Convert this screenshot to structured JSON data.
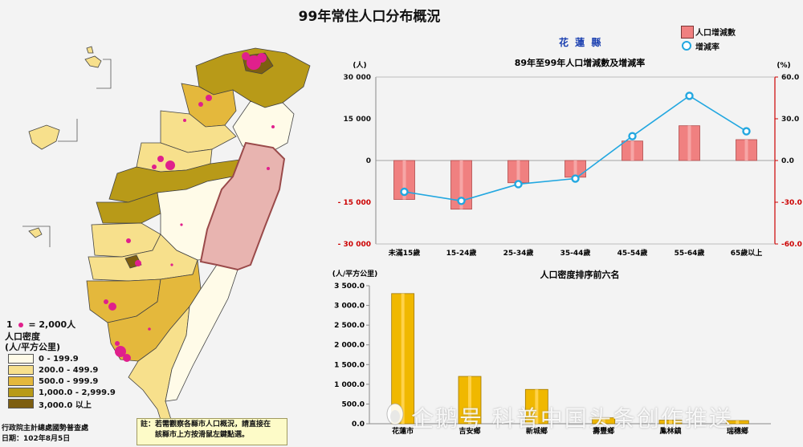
{
  "page": {
    "title": "99年常住人口分布概況"
  },
  "region": {
    "name": "花 蓮 縣"
  },
  "legend_top": {
    "bar_label": "人口增減數",
    "line_label": "增減率",
    "bar_color": "#f08080",
    "line_color": "#22a7e0"
  },
  "map": {
    "dot_legend": {
      "count": "1",
      "equals": "= 2,000人"
    },
    "density_title_1": "人口密度",
    "density_title_2": "(人/平方公里)",
    "classes": [
      {
        "label": "0 - 199.9",
        "color": "#fffbe8"
      },
      {
        "label": "200.0 - 499.9",
        "color": "#f7e08c"
      },
      {
        "label": "500.0 - 999.9",
        "color": "#e4b83c"
      },
      {
        "label": "1,000.0 - 2,999.9",
        "color": "#b89a18"
      },
      {
        "label": "3,000.0 以上",
        "color": "#7d5e10"
      }
    ],
    "highlight_color": "#e8b4b0",
    "dot_color": "#e0208c"
  },
  "note": {
    "line1": "註：若需觀察各縣市人口概況，請直接在",
    "line2": "該縣市上方按滑鼠左鍵點選。"
  },
  "credit": {
    "line1": "行政院主計總處國勢普查處",
    "line2": "日期：102年8月5日"
  },
  "chart_data": [
    {
      "type": "bar",
      "title": "89年至99年人口增減數及增減率",
      "ylabel_left": "(人)",
      "ylabel_right": "(%)",
      "categories": [
        "未滿15歲",
        "15-24歲",
        "25-34歲",
        "35-44歲",
        "45-54歲",
        "55-64歲",
        "65歲以上"
      ],
      "ylim_left": [
        -30000,
        30000
      ],
      "yticks_left": [
        "30 000",
        "15 000",
        "0",
        "- 15 000",
        "- 30 000"
      ],
      "ylim_right": [
        -60,
        60
      ],
      "yticks_right": [
        "60.0",
        "30.0",
        "0.0",
        "-30.0",
        "-60.0"
      ],
      "series": [
        {
          "name": "人口增減數",
          "kind": "bar",
          "axis": "left",
          "values": [
            -14000,
            -17500,
            -8000,
            -6000,
            7000,
            12500,
            7500
          ]
        },
        {
          "name": "增減率",
          "kind": "line",
          "axis": "right",
          "values": [
            -22.5,
            -29,
            -17,
            -13,
            17.5,
            46.5,
            21
          ]
        }
      ],
      "grid": false
    },
    {
      "type": "bar",
      "title": "人口密度排序前六名",
      "ylabel": "(人/平方公里)",
      "ylim": [
        0,
        3500
      ],
      "yticks": [
        "3 500.0",
        "3 000.0",
        "2 500.0",
        "2 000.0",
        "1 500.0",
        "1 000.0",
        "500.0",
        "0.0"
      ],
      "categories": [
        "花蓮市",
        "吉安鄉",
        "新城鄉",
        "壽豐鄉",
        "鳳林鎮",
        "瑞穗鄉"
      ],
      "values": [
        3300,
        1200,
        870,
        150,
        90,
        80
      ],
      "color": "#f0b800"
    }
  ],
  "watermark": {
    "text": "企鹅号 科普中国头条创作推送"
  }
}
